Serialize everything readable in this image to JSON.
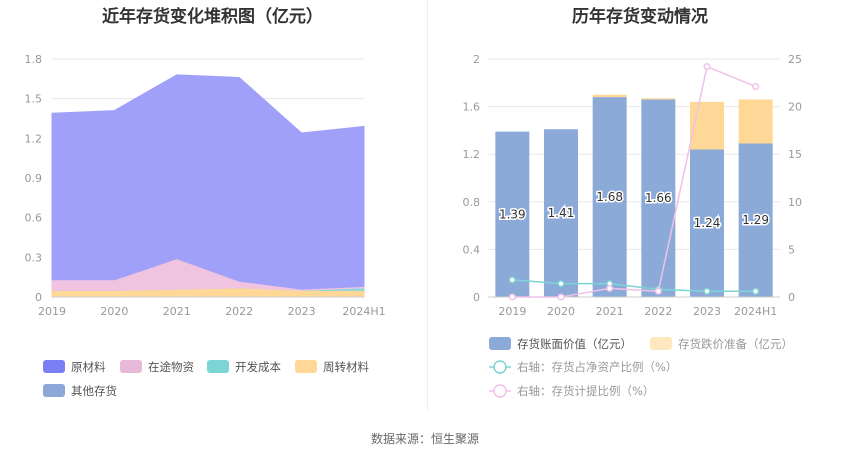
{
  "source_label": "数据来源：恒生聚源",
  "chart_data": [
    {
      "type": "area",
      "stacked": true,
      "title": "近年存货变化堆积图（亿元）",
      "categories": [
        "2019",
        "2020",
        "2021",
        "2022",
        "2023",
        "2024H1"
      ],
      "ylim": [
        0,
        1.8
      ],
      "yticks": [
        "0",
        "0.3",
        "0.6",
        "0.9",
        "1.2",
        "1.5",
        "1.8"
      ],
      "grid": true,
      "legend_position": "bottom-left",
      "series": [
        {
          "name": "周转材料",
          "color": "#ffd898",
          "values": [
            0.05,
            0.05,
            0.06,
            0.07,
            0.05,
            0.05
          ]
        },
        {
          "name": "开发成本",
          "color": "#8ad8d8",
          "values": [
            0,
            0,
            0,
            0,
            0,
            0.02
          ]
        },
        {
          "name": "在途物资",
          "color": "#f0c4e0",
          "values": [
            0.08,
            0.08,
            0.23,
            0.05,
            0.01,
            0.01
          ]
        },
        {
          "name": "原材料",
          "color": "#a0a0f8",
          "values": [
            1.26,
            1.28,
            1.39,
            1.54,
            1.18,
            1.21
          ]
        },
        {
          "name": "其他存货",
          "color": "#8ca8d8",
          "values": [
            0,
            0,
            0,
            0,
            0,
            0
          ]
        }
      ],
      "legend_order": [
        "原材料",
        "在途物资",
        "开发成本",
        "周转材料",
        "其他存货"
      ],
      "legend_colors": {
        "原材料": "#7b7ff5",
        "在途物资": "#e8b8d8",
        "开发成本": "#7dd4d4",
        "周转材料": "#ffd898",
        "其他存货": "#8ca8d8"
      }
    },
    {
      "type": "bar",
      "stacked": true,
      "title": "历年存货变动情况",
      "categories": [
        "2019",
        "2020",
        "2021",
        "2022",
        "2023",
        "2024H1"
      ],
      "ylim": [
        0,
        2
      ],
      "yticks": [
        "0",
        "0.4",
        "0.8",
        "1.2",
        "1.6",
        "2"
      ],
      "y2lim": [
        0,
        25
      ],
      "y2ticks": [
        "0",
        "5",
        "10",
        "15",
        "20",
        "25"
      ],
      "grid": true,
      "legend_position": "bottom",
      "series": [
        {
          "name": "存货账面价值（亿元）",
          "kind": "bar",
          "color": "#8caad8",
          "values": [
            1.39,
            1.41,
            1.68,
            1.66,
            1.24,
            1.29
          ],
          "labels": [
            "1.39",
            "1.41",
            "1.68",
            "1.66",
            "1.24",
            "1.29"
          ]
        },
        {
          "name": "存货跌价准备（亿元）",
          "kind": "bar",
          "color": "#ffd898",
          "values": [
            0,
            0,
            0.02,
            0.01,
            0.4,
            0.37
          ]
        },
        {
          "name": "右轴：存货占净资产比例（%）",
          "kind": "line",
          "axis": "right",
          "color": "#7dd4d4",
          "values": [
            1.8,
            1.4,
            1.4,
            0.8,
            0.6,
            0.6
          ]
        },
        {
          "name": "右轴：存货计提比例（%）",
          "kind": "line",
          "axis": "right",
          "color": "#f0c0e8",
          "values": [
            0,
            0,
            0.9,
            0.6,
            24.2,
            22.1
          ]
        }
      ]
    }
  ]
}
